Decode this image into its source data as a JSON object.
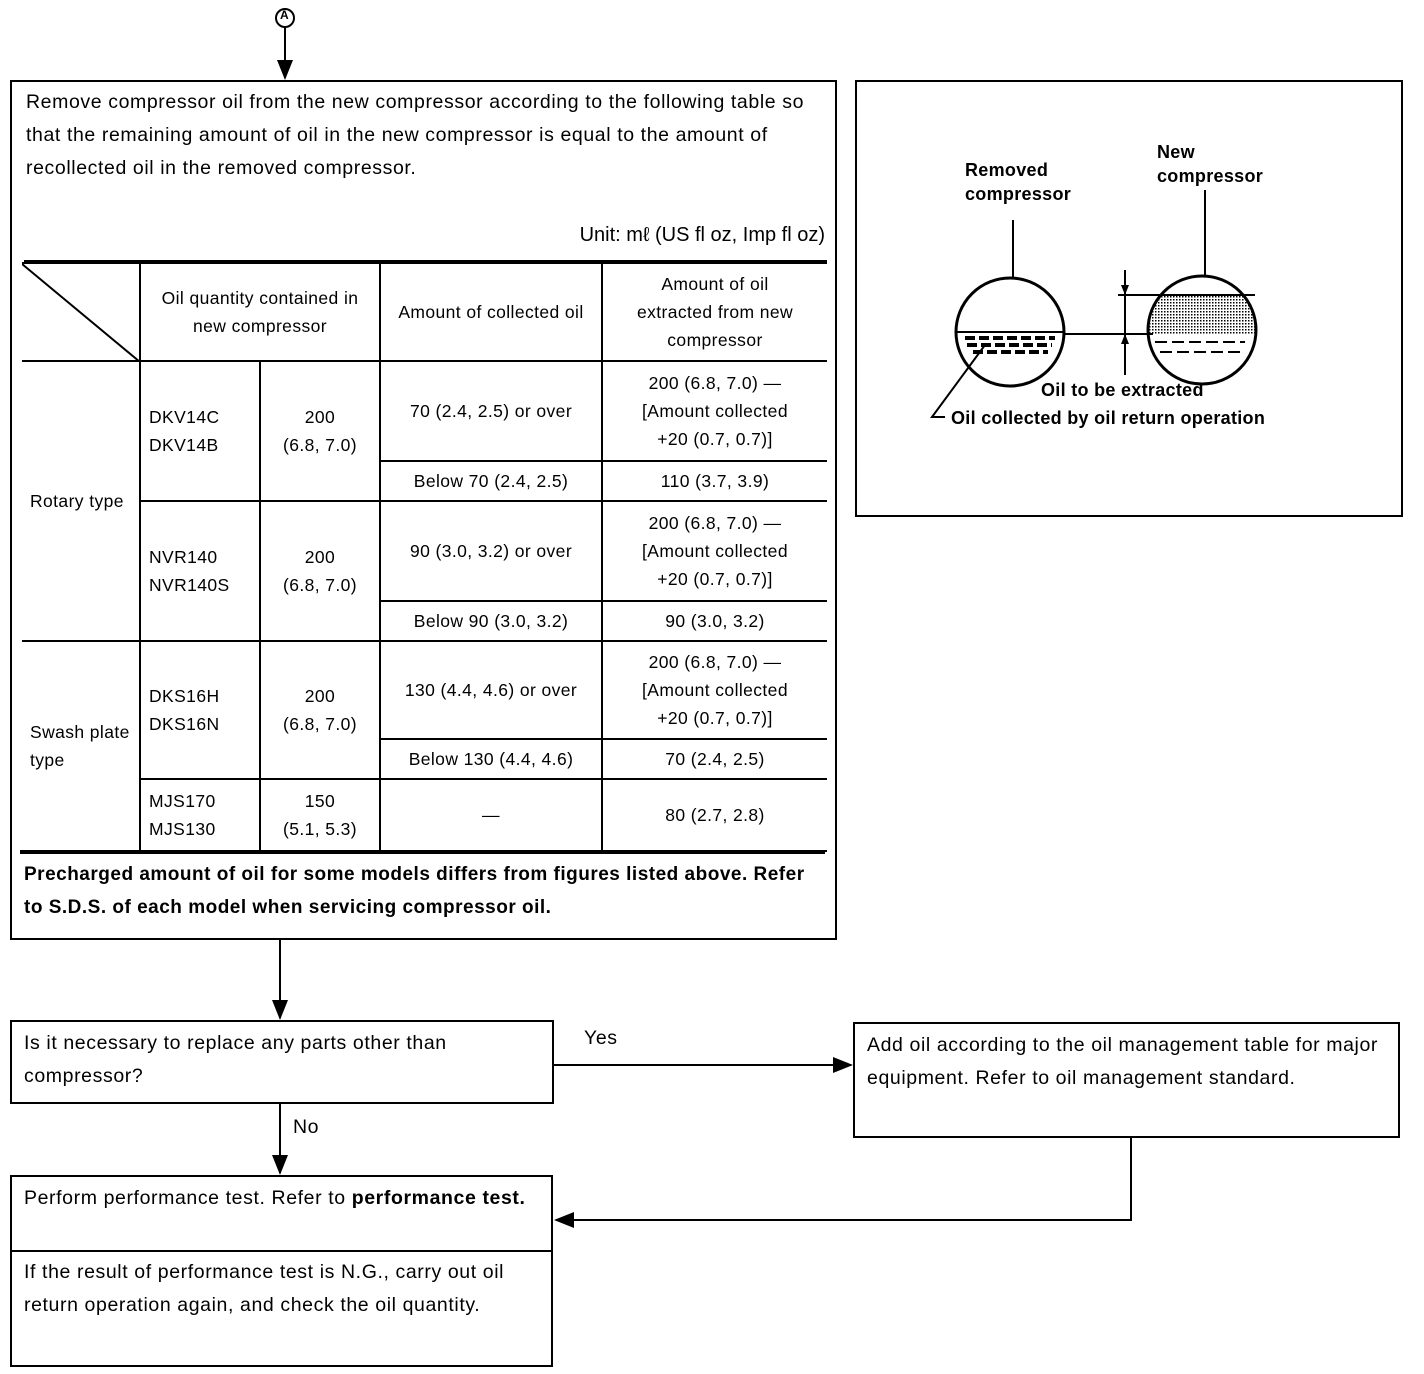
{
  "connector_label": "A",
  "step1": {
    "text": "Remove compressor oil from the new compressor according to the following table so that the remaining amount of oil in the new compressor is equal to the amount of recollected oil in the removed compressor.",
    "unit": "Unit: mℓ (US fl oz, Imp fl oz)",
    "table": {
      "headers": [
        "Oil quantity contained in new compressor",
        "Amount of collected oil",
        "Amount of oil extracted from new compressor"
      ],
      "groups": [
        {
          "type": "Rotary type",
          "models": [
            {
              "model": "DKV14C\nDKV14B",
              "quantity": "200\n(6.8, 7.0)",
              "rows": [
                {
                  "collected": "70 (2.4, 2.5) or over",
                  "extracted": "200 (6.8, 7.0) —\n[Amount collected\n+20 (0.7, 0.7)]"
                },
                {
                  "collected": "Below 70 (2.4, 2.5)",
                  "extracted": "110 (3.7, 3.9)"
                }
              ]
            },
            {
              "model": "NVR140\nNVR140S",
              "quantity": "200\n(6.8, 7.0)",
              "rows": [
                {
                  "collected": "90 (3.0, 3.2) or over",
                  "extracted": "200 (6.8, 7.0) —\n[Amount collected\n+20 (0.7, 0.7)]"
                },
                {
                  "collected": "Below 90 (3.0, 3.2)",
                  "extracted": "90 (3.0, 3.2)"
                }
              ]
            }
          ]
        },
        {
          "type": "Swash plate type",
          "models": [
            {
              "model": "DKS16H\nDKS16N",
              "quantity": "200\n(6.8, 7.0)",
              "rows": [
                {
                  "collected": "130 (4.4, 4.6) or over",
                  "extracted": "200 (6.8, 7.0) —\n[Amount collected\n+20 (0.7, 0.7)]"
                },
                {
                  "collected": "Below 130 (4.4, 4.6)",
                  "extracted": "70 (2.4, 2.5)"
                }
              ]
            },
            {
              "model": "MJS170\nMJS130",
              "quantity": "150\n(5.1, 5.3)",
              "rows": [
                {
                  "collected": "—",
                  "extracted": "80 (2.7, 2.8)"
                }
              ]
            }
          ]
        }
      ]
    },
    "note": "Precharged amount of oil for some models differs from figures listed above. Refer to S.D.S. of each model when servicing compressor oil."
  },
  "figure": {
    "removed_label": "Removed compressor",
    "new_label": "New compressor",
    "extract_label": "Oil to be extracted",
    "collected_label": "Oil collected by oil return operation"
  },
  "question": {
    "text": "Is it necessary to replace any parts other than compressor?",
    "yes": "Yes",
    "no": "No"
  },
  "add_oil": {
    "text": "Add oil according to the oil management table for major equipment. Refer to oil management standard."
  },
  "perf": {
    "text": "Perform performance test. Refer to ",
    "bold": "performance test.",
    "note": "If the result of performance test is N.G., carry out oil return operation again, and check the oil quantity."
  }
}
